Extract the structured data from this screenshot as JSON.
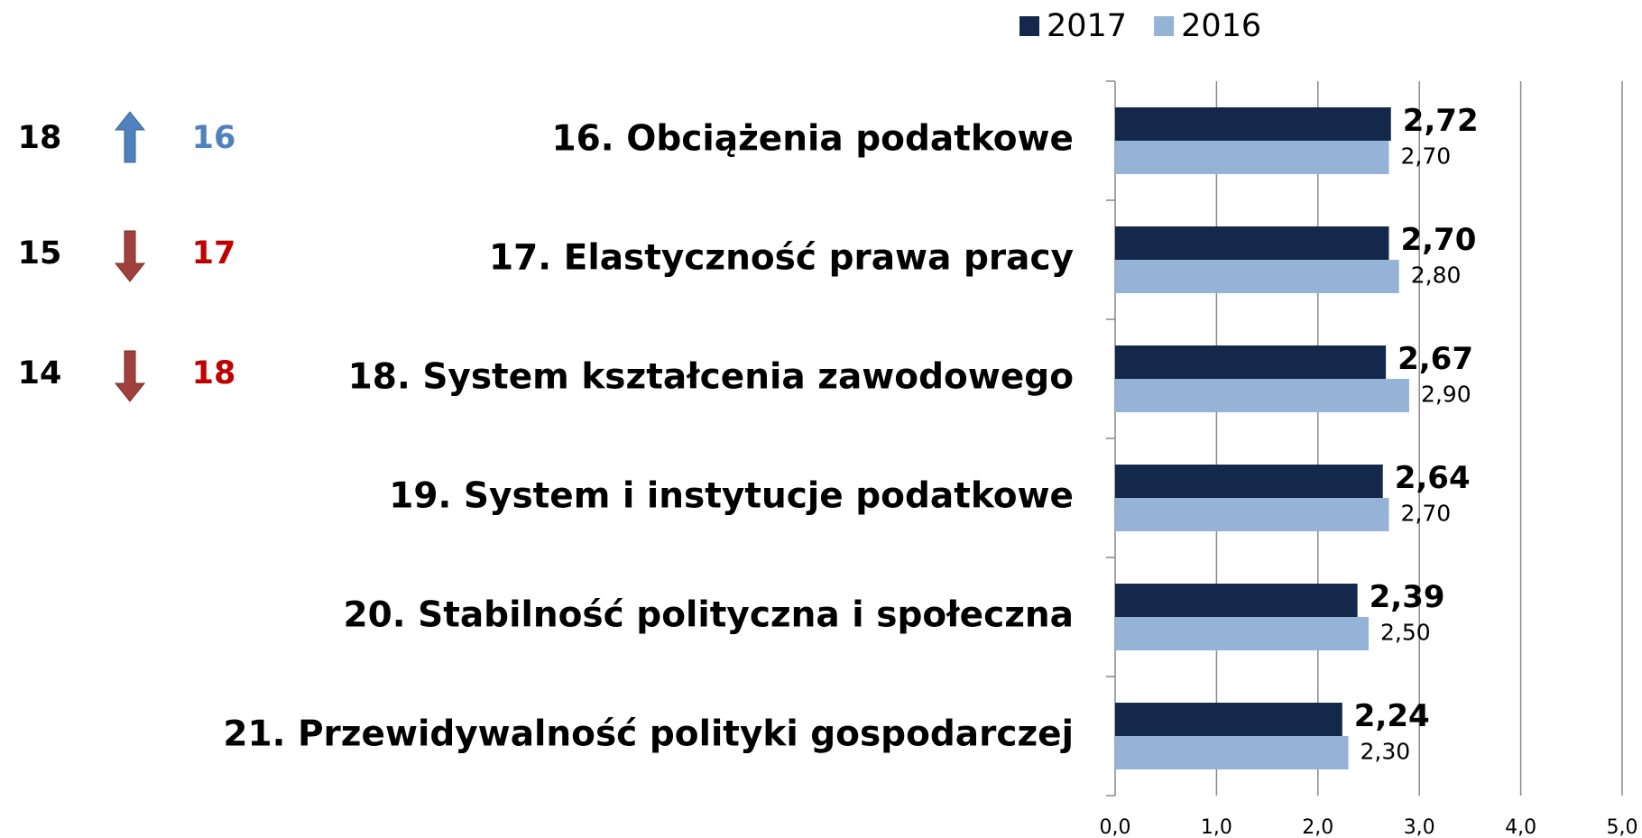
{
  "chart_data": {
    "type": "bar",
    "orientation": "horizontal",
    "categories": [
      "16. Obciążenia podatkowe",
      "17. Elastyczność prawa pracy",
      "18. System kształcenia zawodowego",
      "19. System i instytucje podatkowe",
      "20. Stabilność polityczna i społeczna",
      "21. Przewidywalność polityki gospodarczej"
    ],
    "series": [
      {
        "name": "2017",
        "color": "#14284b",
        "values": [
          2.72,
          2.7,
          2.67,
          2.64,
          2.39,
          2.24
        ],
        "value_labels": [
          "2,72",
          "2,70",
          "2,67",
          "2,64",
          "2,39",
          "2,24"
        ]
      },
      {
        "name": "2016",
        "color": "#95b3d7",
        "values": [
          2.7,
          2.8,
          2.9,
          2.7,
          2.5,
          2.3
        ],
        "value_labels": [
          "2,70",
          "2,80",
          "2,90",
          "2,70",
          "2,50",
          "2,30"
        ]
      }
    ],
    "xlim": [
      0,
      5
    ],
    "xticks": [
      {
        "value": 0,
        "label": "0,0"
      },
      {
        "value": 1,
        "label": "1,0"
      },
      {
        "value": 2,
        "label": "2,0"
      },
      {
        "value": 3,
        "label": "3,0"
      },
      {
        "value": 4,
        "label": "4,0"
      },
      {
        "value": 5,
        "label": "5,0"
      }
    ],
    "grid": true,
    "legend": "top"
  },
  "ranks": [
    {
      "previous": 18,
      "current": 16,
      "direction": "up"
    },
    {
      "previous": 15,
      "current": 17,
      "direction": "down"
    },
    {
      "previous": 14,
      "current": 18,
      "direction": "down"
    }
  ]
}
